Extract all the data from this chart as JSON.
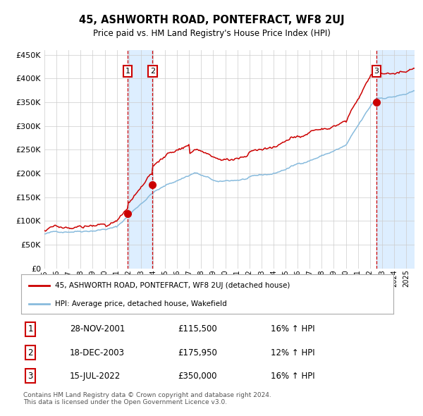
{
  "title": "45, ASHWORTH ROAD, PONTEFRACT, WF8 2UJ",
  "subtitle": "Price paid vs. HM Land Registry's House Price Index (HPI)",
  "ylim": [
    0,
    460000
  ],
  "yticks": [
    0,
    50000,
    100000,
    150000,
    200000,
    250000,
    300000,
    350000,
    400000,
    450000
  ],
  "xlim_start": 1995.0,
  "xlim_end": 2025.7,
  "red_line_color": "#cc0000",
  "blue_line_color": "#88bbdd",
  "grid_color": "#cccccc",
  "background_color": "#ffffff",
  "sale_marker_color": "#cc0000",
  "vspan_color": "#ddeeff",
  "vline_color": "#cc0000",
  "sale_events": [
    {
      "label": "1",
      "date_decimal": 2001.91,
      "price": 115500
    },
    {
      "label": "2",
      "date_decimal": 2003.96,
      "price": 175950
    },
    {
      "label": "3",
      "date_decimal": 2022.54,
      "price": 350000
    }
  ],
  "legend_red_label": "45, ASHWORTH ROAD, PONTEFRACT, WF8 2UJ (detached house)",
  "legend_blue_label": "HPI: Average price, detached house, Wakefield",
  "table_rows": [
    {
      "num": "1",
      "date": "28-NOV-2001",
      "price": "£115,500",
      "hpi": "16% ↑ HPI"
    },
    {
      "num": "2",
      "date": "18-DEC-2003",
      "price": "£175,950",
      "hpi": "12% ↑ HPI"
    },
    {
      "num": "3",
      "date": "15-JUL-2022",
      "price": "£350,000",
      "hpi": "16% ↑ HPI"
    }
  ],
  "footnote": "Contains HM Land Registry data © Crown copyright and database right 2024.\nThis data is licensed under the Open Government Licence v3.0."
}
